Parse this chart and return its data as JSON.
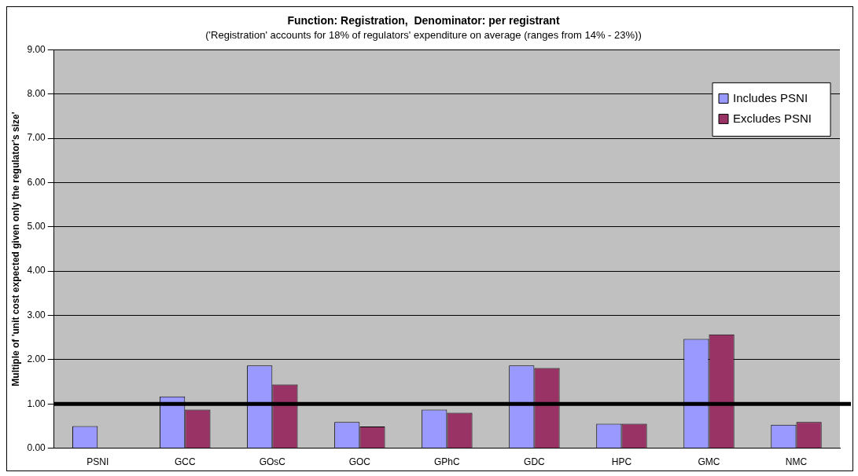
{
  "chart_data": {
    "type": "bar",
    "title": "Function: Registration,  Denominator: per registrant",
    "subtitle": "('Registration' accounts for 18% of regulators' expenditure on average (ranges from 14% - 23%))",
    "ylabel": "Multiple of 'unit cost expected given only the regulator's size'",
    "categories": [
      "PSNI",
      "GCC",
      "GOsC",
      "GOC",
      "GPhC",
      "GDC",
      "HPC",
      "GMC",
      "NMC"
    ],
    "series": [
      {
        "name": "Includes PSNI",
        "color": "#9999ff",
        "values": [
          0.5,
          1.17,
          1.87,
          0.59,
          0.87,
          1.87,
          0.55,
          2.47,
          0.53
        ]
      },
      {
        "name": "Excludes PSNI",
        "color": "#993366",
        "values": [
          null,
          0.87,
          1.44,
          0.49,
          0.8,
          1.81,
          0.55,
          2.57,
          0.59
        ]
      }
    ],
    "ylim": [
      0,
      9
    ],
    "yticks": [
      {
        "value": 0,
        "label": "0.00"
      },
      {
        "value": 1,
        "label": "1.00"
      },
      {
        "value": 2,
        "label": "2.00"
      },
      {
        "value": 3,
        "label": "3.00"
      },
      {
        "value": 4,
        "label": "4.00"
      },
      {
        "value": 5,
        "label": "5.00"
      },
      {
        "value": 6,
        "label": "6.00"
      },
      {
        "value": 7,
        "label": "7.00"
      },
      {
        "value": 8,
        "label": "8.00"
      },
      {
        "value": 9,
        "label": "9.00"
      }
    ],
    "ref_lines": [
      {
        "axis": "y",
        "value": 1,
        "color": "#000000"
      }
    ],
    "grid": "y",
    "legend": "top right"
  }
}
